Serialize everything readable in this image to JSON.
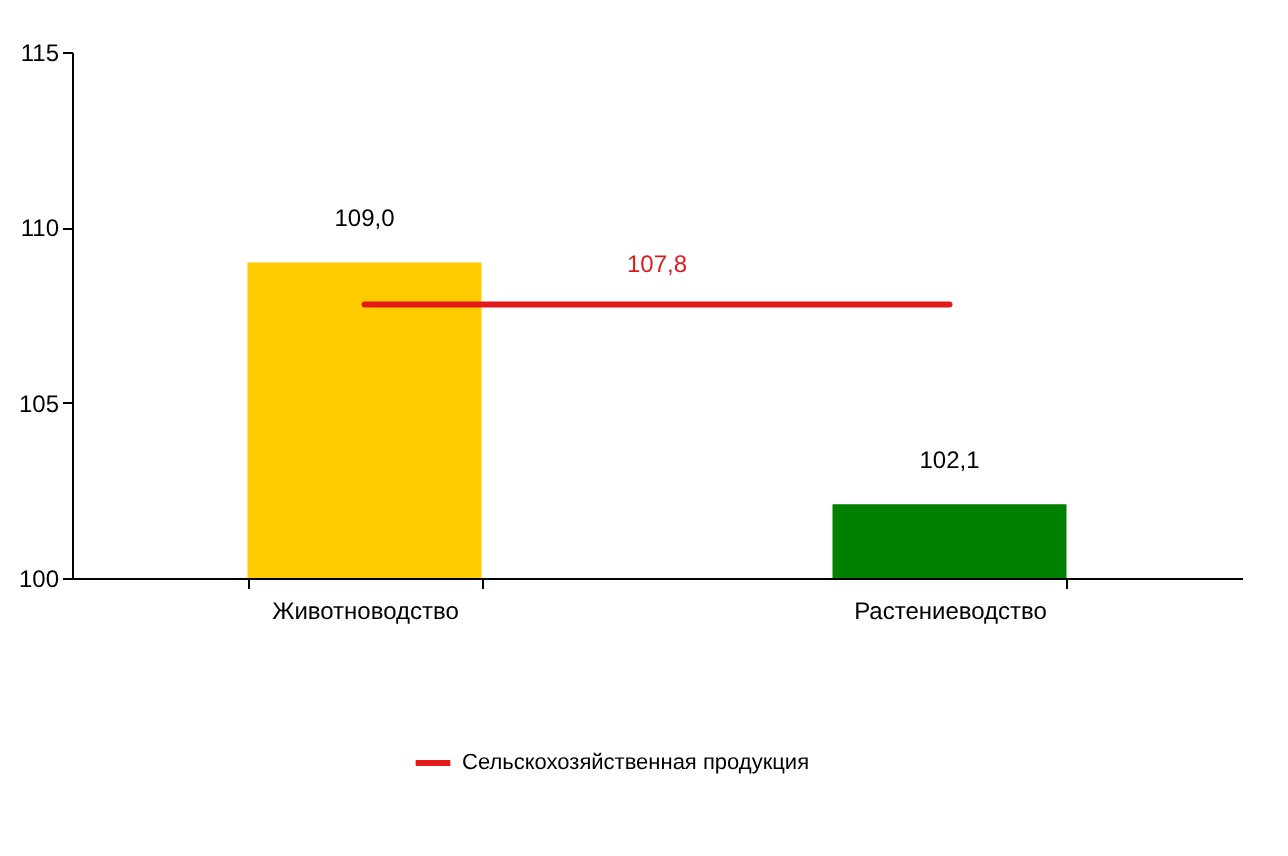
{
  "chart_data": {
    "type": "bar",
    "categories": [
      "Животноводство",
      "Растениеводство"
    ],
    "series": [
      {
        "colors": [
          "#ffcc00",
          "#008000"
        ],
        "values": [
          109.0,
          102.1
        ],
        "value_labels": [
          "109,0",
          "102,1"
        ]
      },
      {
        "type": "line",
        "name": "Сельскохозяйственная продукция",
        "color": "#e31a1c",
        "values": [
          107.8,
          107.8
        ]
      }
    ],
    "annotations": [
      "107,8"
    ],
    "ylim": [
      100,
      115
    ],
    "yticks": [
      100,
      105,
      110,
      115
    ],
    "grid": false,
    "legend": "bottom",
    "marker": "none"
  }
}
